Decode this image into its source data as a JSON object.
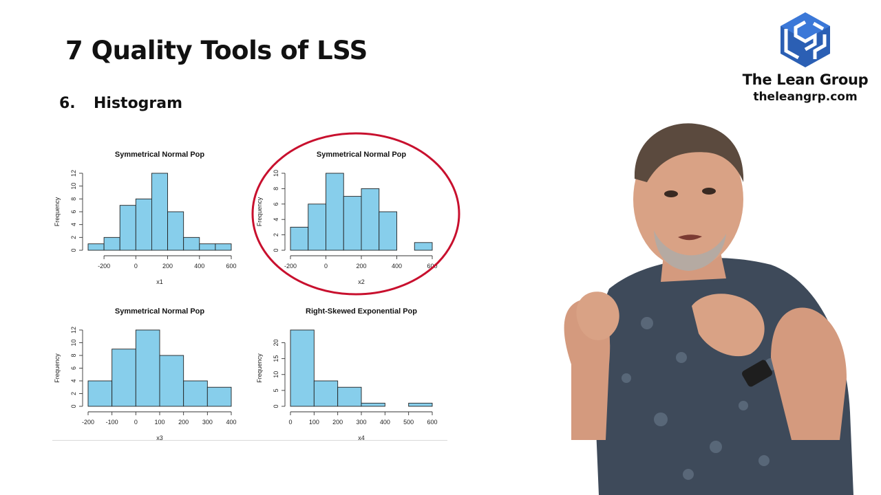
{
  "slide": {
    "title": "7 Quality Tools of LSS",
    "section_number": "6.",
    "section_label": "Histogram"
  },
  "logo": {
    "name": "The Lean Group",
    "url": "theleangrp.com",
    "mark_color": "#2b5fb4",
    "icon": "lean-group-cube-logo"
  },
  "colors": {
    "bar_fill": "#87ceeb",
    "highlight_circle": "#c8102e"
  },
  "highlight": {
    "chart_index": 1,
    "shape": "circle"
  },
  "chart_data": [
    {
      "type": "bar",
      "title": "Symmetrical Normal Pop",
      "xlabel": "x1",
      "ylabel": "Frequency",
      "bin_edges": [
        -300,
        -200,
        -100,
        0,
        100,
        200,
        300,
        400,
        500,
        600
      ],
      "values": [
        1,
        2,
        7,
        8,
        12,
        6,
        2,
        1,
        1
      ],
      "x_ticks": [
        -200,
        0,
        200,
        400,
        600
      ],
      "y_ticks": [
        0,
        2,
        4,
        6,
        8,
        10,
        12
      ],
      "xlim": [
        -300,
        600
      ],
      "ylim": [
        0,
        12
      ]
    },
    {
      "type": "bar",
      "title": "Symmetrical Normal Pop",
      "xlabel": "x2",
      "ylabel": "Frequency",
      "bin_edges": [
        -200,
        -100,
        0,
        100,
        200,
        300,
        400,
        500,
        600
      ],
      "values": [
        3,
        6,
        10,
        7,
        8,
        5,
        0,
        1
      ],
      "x_ticks": [
        -200,
        0,
        200,
        400,
        600
      ],
      "y_ticks": [
        0,
        2,
        4,
        6,
        8,
        10
      ],
      "xlim": [
        -200,
        600
      ],
      "ylim": [
        0,
        10
      ]
    },
    {
      "type": "bar",
      "title": "Symmetrical Normal Pop",
      "xlabel": "x3",
      "ylabel": "Frequency",
      "bin_edges": [
        -200,
        -100,
        0,
        100,
        200,
        300,
        400
      ],
      "values": [
        4,
        9,
        12,
        8,
        4,
        3
      ],
      "x_ticks": [
        -200,
        -100,
        0,
        100,
        200,
        300,
        400
      ],
      "y_ticks": [
        0,
        2,
        4,
        6,
        8,
        10,
        12
      ],
      "xlim": [
        -200,
        400
      ],
      "ylim": [
        0,
        12
      ]
    },
    {
      "type": "bar",
      "title": "Right-Skewed Exponential Pop",
      "xlabel": "x4",
      "ylabel": "Frequency",
      "bin_edges": [
        0,
        100,
        200,
        300,
        400,
        500,
        600
      ],
      "values": [
        24,
        8,
        6,
        1,
        0,
        1
      ],
      "x_ticks": [
        0,
        100,
        200,
        300,
        400,
        500,
        600
      ],
      "y_ticks": [
        0,
        5,
        10,
        15,
        20
      ],
      "xlim": [
        0,
        600
      ],
      "ylim": [
        0,
        24
      ]
    }
  ]
}
